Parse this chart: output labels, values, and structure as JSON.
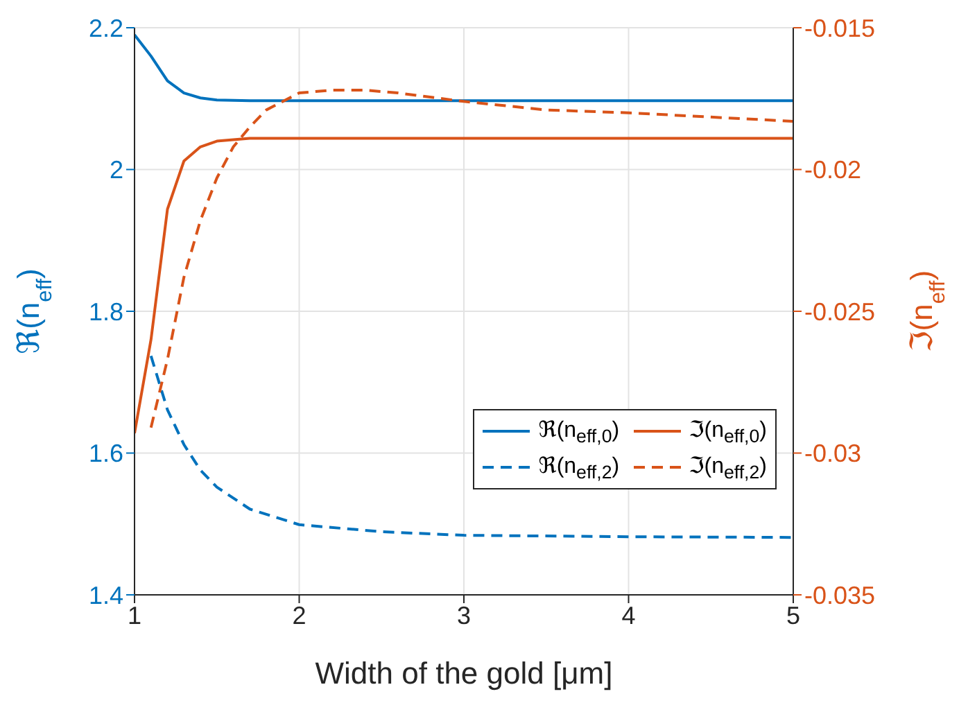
{
  "chart_data": {
    "type": "line",
    "xlabel": "Width of the gold [μm]",
    "ylabel": "ℜ(n$_{eff}$)",
    "y2label": "ℑ(n$_{eff}$)",
    "xlim": [
      1,
      5
    ],
    "xticks": [
      1,
      2,
      3,
      4,
      5
    ],
    "ylim": [
      1.4,
      2.2
    ],
    "yticks": [
      1.4,
      1.6,
      1.8,
      2,
      2.2
    ],
    "y2lim": [
      -0.035,
      -0.015
    ],
    "y2ticks": [
      -0.035,
      -0.03,
      -0.025,
      -0.02,
      -0.015
    ],
    "grid": true,
    "legend": "bottom right",
    "series": [
      {
        "name": "ℜ(n$_{eff,0}$)",
        "color": "#0072bd",
        "line_style": "solid",
        "x": [
          1,
          1.1,
          1.2,
          1.3,
          1.4,
          1.5,
          1.7,
          2,
          3,
          4,
          5
        ],
        "values": [
          2.19,
          2.16,
          2.125,
          2.108,
          2.101,
          2.098,
          2.097,
          2.097,
          2.097,
          2.097,
          2.097
        ]
      },
      {
        "name": "ℑ(n$_{eff,0}$)",
        "color": "#d95319",
        "line_style": "solid",
        "axis": "y2",
        "x": [
          1,
          1.1,
          1.2,
          1.3,
          1.4,
          1.5,
          1.7,
          2,
          3,
          4,
          5
        ],
        "values": [
          -0.0293,
          -0.026,
          -0.0214,
          -0.0197,
          -0.0192,
          -0.019,
          -0.0189,
          -0.0189,
          -0.0189,
          -0.0189,
          -0.0189
        ]
      },
      {
        "name": "ℜ(n$_{eff,2}$)",
        "color": "#0072bd",
        "line_style": "dashed",
        "x": [
          1.1,
          1.2,
          1.3,
          1.4,
          1.5,
          1.7,
          2,
          2.5,
          3,
          4,
          5
        ],
        "values": [
          1.737,
          1.661,
          1.612,
          1.576,
          1.552,
          1.521,
          1.499,
          1.489,
          1.484,
          1.482,
          1.481
        ]
      },
      {
        "name": "ℑ(n$_{eff,2}$)",
        "color": "#d95319",
        "line_style": "dashed",
        "axis": "y2",
        "x": [
          1.1,
          1.2,
          1.3,
          1.4,
          1.5,
          1.6,
          1.7,
          1.8,
          2,
          2.2,
          2.4,
          2.6,
          3,
          3.5,
          4,
          5
        ],
        "values": [
          -0.0291,
          -0.0267,
          -0.0238,
          -0.0218,
          -0.0203,
          -0.0192,
          -0.0185,
          -0.0179,
          -0.0173,
          -0.0172,
          -0.0172,
          -0.0173,
          -0.0176,
          -0.0179,
          -0.018,
          -0.0183
        ]
      }
    ]
  }
}
